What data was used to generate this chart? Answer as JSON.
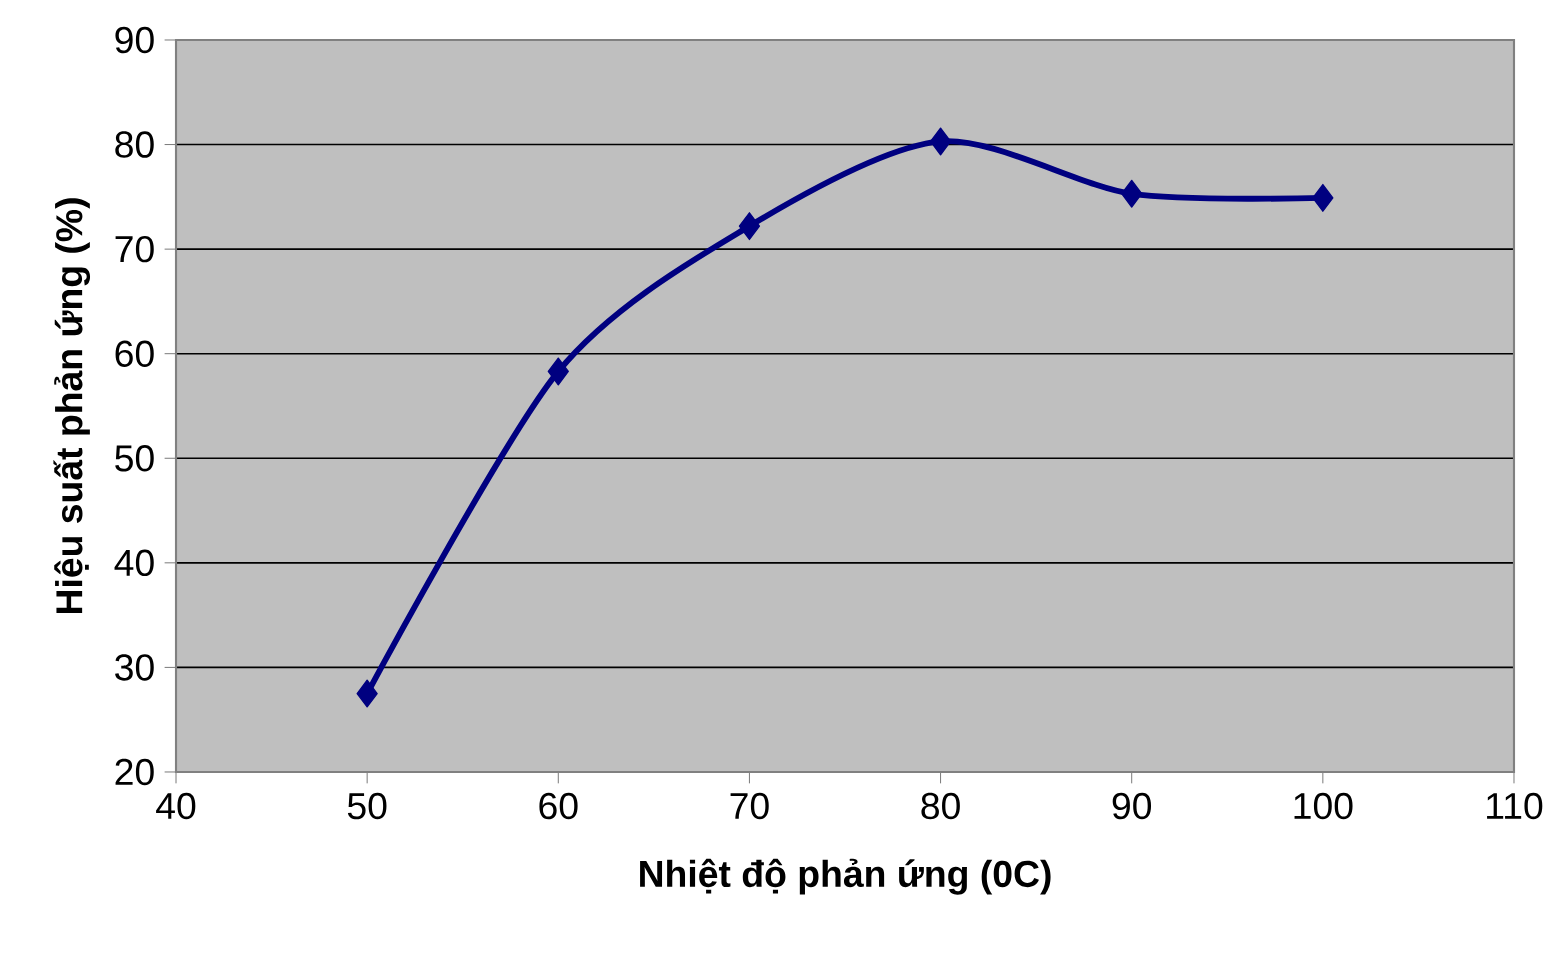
{
  "chart_data": {
    "type": "line",
    "xlabel": "Nhiệt độ phản ứng (0C)",
    "ylabel": "Hiệu suất phản ứng (%)",
    "x": [
      50,
      60,
      70,
      80,
      90,
      100
    ],
    "series": [
      {
        "color": "#000080",
        "values": [
          27.5,
          58.3,
          72.2,
          80.3,
          75.3,
          74.9
        ]
      }
    ],
    "xlim": [
      40,
      110
    ],
    "xticks": [
      40,
      50,
      60,
      70,
      80,
      90,
      100,
      110
    ],
    "ylim": [
      20,
      90
    ],
    "yticks": [
      20,
      30,
      40,
      50,
      60,
      70,
      80,
      90
    ],
    "grid": "y",
    "marker": "diamond",
    "line_style": "solid"
  }
}
